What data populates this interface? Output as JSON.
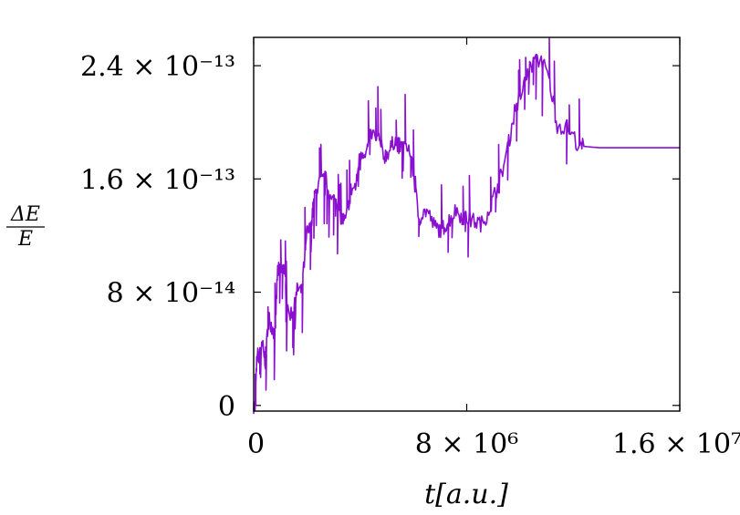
{
  "chart_data": {
    "type": "line",
    "xlabel": "t[a.u.]",
    "ylabel": {
      "numerator": "ΔE",
      "denominator": "E"
    },
    "xlim": [
      0,
      16000000
    ],
    "ylim": [
      -4e-15,
      2.6e-13
    ],
    "x_ticks": [
      {
        "value": 0,
        "label": "0"
      },
      {
        "value": 8000000,
        "label": "8 × 10⁶"
      },
      {
        "value": 16000000,
        "label": "1.6 × 10⁷"
      }
    ],
    "y_ticks": [
      {
        "value": 0,
        "label": "0"
      },
      {
        "value": 8e-14,
        "label": "8 × 10⁻¹⁴"
      },
      {
        "value": 1.6e-13,
        "label": "1.6 × 10⁻¹³"
      },
      {
        "value": 2.4e-13,
        "label": "2.4 × 10⁻¹³"
      }
    ],
    "grid": false,
    "series": [
      {
        "color": "#8a0fd0",
        "points": [
          [
            0,
            0
          ],
          [
            60000,
            -2e-15
          ],
          [
            120000,
            3.5e-14
          ],
          [
            250000,
            3.6e-14
          ],
          [
            330000,
            4.2e-14
          ],
          [
            450000,
            3e-14
          ],
          [
            550000,
            6.3e-14
          ],
          [
            700000,
            5.5e-14
          ],
          [
            800000,
            5e-14
          ],
          [
            900000,
            9.6e-14
          ],
          [
            1000000,
            9.4e-14
          ],
          [
            1150000,
            9.8e-14
          ],
          [
            1250000,
            6.5e-14
          ],
          [
            1500000,
            6.6e-14
          ],
          [
            1650000,
            8.3e-14
          ],
          [
            1800000,
            8e-14
          ],
          [
            2000000,
            1.22e-13
          ],
          [
            2150000,
            1.25e-13
          ],
          [
            2300000,
            1.49e-13
          ],
          [
            2500000,
            1.58e-13
          ],
          [
            2700000,
            1.6e-13
          ],
          [
            2900000,
            1.44e-13
          ],
          [
            3100000,
            1.46e-13
          ],
          [
            3300000,
            1.32e-13
          ],
          [
            3450000,
            1.3e-13
          ],
          [
            3650000,
            1.52e-13
          ],
          [
            3850000,
            1.55e-13
          ],
          [
            4000000,
            1.79e-13
          ],
          [
            4250000,
            1.8e-13
          ],
          [
            4400000,
            1.92e-13
          ],
          [
            4700000,
            1.88e-13
          ],
          [
            4900000,
            1.76e-13
          ],
          [
            5100000,
            1.8e-13
          ],
          [
            5300000,
            1.88e-13
          ],
          [
            5500000,
            1.82e-13
          ],
          [
            5800000,
            1.84e-13
          ],
          [
            6000000,
            1.64e-13
          ],
          [
            6200000,
            1.32e-13
          ],
          [
            6500000,
            1.38e-13
          ],
          [
            6800000,
            1.26e-13
          ],
          [
            7050000,
            1.24e-13
          ],
          [
            7300000,
            1.3e-13
          ],
          [
            7600000,
            1.38e-13
          ],
          [
            7900000,
            1.32e-13
          ],
          [
            8300000,
            1.3e-13
          ],
          [
            8600000,
            1.28e-13
          ],
          [
            8900000,
            1.42e-13
          ],
          [
            9200000,
            1.56e-13
          ],
          [
            9500000,
            1.78e-13
          ],
          [
            9800000,
            2.08e-13
          ],
          [
            10100000,
            2.23e-13
          ],
          [
            10400000,
            2.4e-13
          ],
          [
            10800000,
            2.45e-13
          ],
          [
            11100000,
            2.3e-13
          ],
          [
            11400000,
            1.98e-13
          ],
          [
            11800000,
            1.96e-13
          ],
          [
            12200000,
            1.84e-13
          ],
          [
            12400000,
            1.83e-13
          ],
          [
            13000000,
            1.82e-13
          ],
          [
            14000000,
            1.82e-13
          ],
          [
            15000000,
            1.82e-13
          ],
          [
            16000000,
            1.82e-13
          ]
        ]
      }
    ]
  }
}
